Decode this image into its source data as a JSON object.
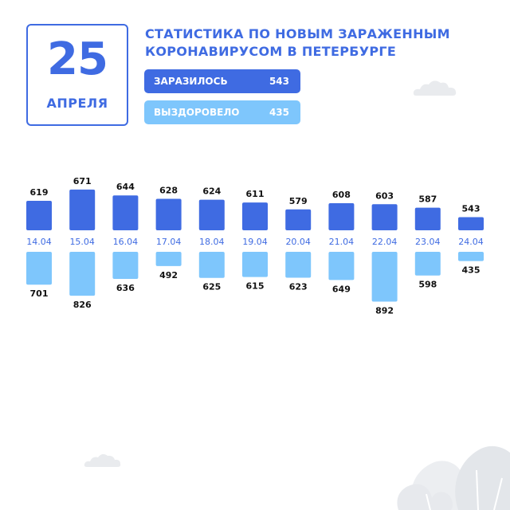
{
  "date": {
    "day": "25",
    "month": "АПРЕЛЯ"
  },
  "title": {
    "line1": "СТАТИСТИКА ПО НОВЫМ ЗАРАЖЕННЫМ",
    "line2": "КОРОНАВИРУСОМ В ПЕТЕРБУРГЕ"
  },
  "legend": {
    "infected": {
      "label": "ЗАРАЗИЛОСЬ",
      "value": "543"
    },
    "recovered": {
      "label": "ВЫЗДОРОВЕЛО",
      "value": "435"
    }
  },
  "colors": {
    "infected": "#3f6be2",
    "recovered": "#7ec6fc",
    "accent": "#3f6be2"
  },
  "chart_data": {
    "type": "bar",
    "categories": [
      "14.04",
      "15.04",
      "16.04",
      "17.04",
      "18.04",
      "19.04",
      "20.04",
      "21.04",
      "22.04",
      "23.04",
      "24.04"
    ],
    "series": [
      {
        "name": "ЗАРАЗИЛОСЬ",
        "values": [
          619,
          671,
          644,
          628,
          624,
          611,
          579,
          608,
          603,
          587,
          543
        ]
      },
      {
        "name": "ВЫЗДОРОВЕЛО",
        "values": [
          701,
          826,
          636,
          492,
          625,
          615,
          623,
          649,
          892,
          598,
          435
        ]
      }
    ]
  }
}
